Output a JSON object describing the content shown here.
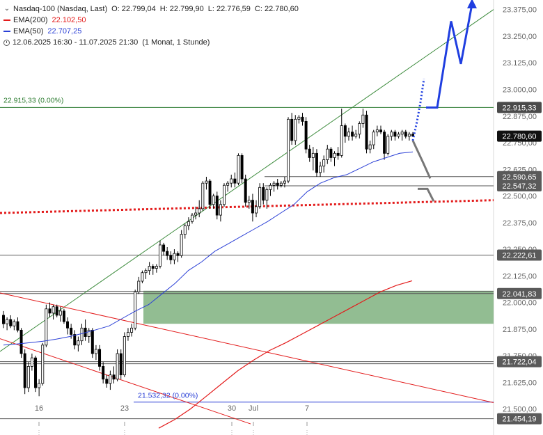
{
  "header": {
    "instrument": "Nasdaq-100 (Nasdaq, Last)",
    "ohlc": {
      "o": "O: 22.799,04",
      "h": "H: 22.799,90",
      "l": "L: 22.776,59",
      "c": "C: 22.780,60"
    },
    "ema200": {
      "label": "EMA(200)",
      "value": "22.102,50",
      "color": "#e31b1b"
    },
    "ema50": {
      "label": "EMA(50)",
      "value": "22.707,25",
      "color": "#2a3fd6"
    },
    "range": "12.06.2025 16:30 - 11.07.2025 21:30",
    "interval": "(1 Monat, 1 Stunde)"
  },
  "chart_data": {
    "type": "candlestick",
    "ylim": [
      21440,
      23410
    ],
    "y_ticks": [
      "23.375,00",
      "23.250,00",
      "23.125,00",
      "23.000,00",
      "22.875,00",
      "22.750,00",
      "22.625,00",
      "22.500,00",
      "22.375,00",
      "22.250,00",
      "22.125,00",
      "22.000,00",
      "21.875,00",
      "21.750,00",
      "21.625,00",
      "21.500,00"
    ],
    "y_tick_values": [
      23375,
      23250,
      23125,
      23000,
      22875,
      22750,
      22625,
      22500,
      22375,
      22250,
      22125,
      22000,
      21875,
      21750,
      21625,
      21500
    ],
    "x_ticks": [
      "16",
      "23",
      "30",
      "Jul",
      "7"
    ],
    "candles": [
      [
        21940,
        21960,
        21880,
        21900
      ],
      [
        21900,
        21930,
        21870,
        21920
      ],
      [
        21920,
        21940,
        21880,
        21890
      ],
      [
        21890,
        21920,
        21870,
        21910
      ],
      [
        21910,
        21930,
        21860,
        21870
      ],
      [
        21870,
        21880,
        21740,
        21760
      ],
      [
        21760,
        21780,
        21570,
        21600
      ],
      [
        21600,
        21720,
        21580,
        21700
      ],
      [
        21700,
        21760,
        21680,
        21740
      ],
      [
        21740,
        21750,
        21580,
        21600
      ],
      [
        21600,
        21640,
        21560,
        21620
      ],
      [
        21620,
        21810,
        21610,
        21800
      ],
      [
        21800,
        21990,
        21790,
        21970
      ],
      [
        21970,
        22000,
        21930,
        21950
      ],
      [
        21950,
        21990,
        21920,
        21980
      ],
      [
        21980,
        21990,
        21930,
        21940
      ],
      [
        21940,
        21980,
        21910,
        21960
      ],
      [
        21960,
        21970,
        21900,
        21910
      ],
      [
        21910,
        21930,
        21850,
        21880
      ],
      [
        21880,
        21900,
        21830,
        21850
      ],
      [
        21850,
        21870,
        21780,
        21800
      ],
      [
        21800,
        21840,
        21770,
        21820
      ],
      [
        21820,
        21900,
        21800,
        21880
      ],
      [
        21880,
        21920,
        21820,
        21840
      ],
      [
        21840,
        21880,
        21810,
        21870
      ],
      [
        21870,
        21880,
        21740,
        21760
      ],
      [
        21760,
        21800,
        21730,
        21780
      ],
      [
        21780,
        21800,
        21680,
        21700
      ],
      [
        21700,
        21720,
        21620,
        21640
      ],
      [
        21640,
        21660,
        21600,
        21620
      ],
      [
        21620,
        21680,
        21590,
        21660
      ],
      [
        21660,
        21700,
        21620,
        21640
      ],
      [
        21640,
        21780,
        21630,
        21760
      ],
      [
        21760,
        21780,
        21640,
        21660
      ],
      [
        21660,
        21860,
        21650,
        21840
      ],
      [
        21840,
        21880,
        21820,
        21860
      ],
      [
        21860,
        21900,
        21840,
        21880
      ],
      [
        21880,
        22060,
        21870,
        22050
      ],
      [
        22050,
        22120,
        22040,
        22100
      ],
      [
        22100,
        22150,
        22090,
        22140
      ],
      [
        22140,
        22160,
        22110,
        22150
      ],
      [
        22150,
        22190,
        22130,
        22170
      ],
      [
        22170,
        22180,
        22130,
        22160
      ],
      [
        22160,
        22180,
        22140,
        22170
      ],
      [
        22170,
        22290,
        22160,
        22270
      ],
      [
        22270,
        22280,
        22220,
        22240
      ],
      [
        22240,
        22260,
        22200,
        22220
      ],
      [
        22220,
        22240,
        22180,
        22200
      ],
      [
        22200,
        22250,
        22180,
        22230
      ],
      [
        22230,
        22240,
        22190,
        22220
      ],
      [
        22220,
        22340,
        22210,
        22320
      ],
      [
        22320,
        22370,
        22300,
        22360
      ],
      [
        22360,
        22400,
        22340,
        22380
      ],
      [
        22380,
        22420,
        22370,
        22410
      ],
      [
        22410,
        22450,
        22390,
        22420
      ],
      [
        22420,
        22480,
        22400,
        22440
      ],
      [
        22440,
        22570,
        22430,
        22560
      ],
      [
        22560,
        22590,
        22530,
        22570
      ],
      [
        22570,
        22580,
        22440,
        22460
      ],
      [
        22460,
        22510,
        22440,
        22500
      ],
      [
        22500,
        22520,
        22390,
        22410
      ],
      [
        22410,
        22480,
        22380,
        22460
      ],
      [
        22460,
        22560,
        22450,
        22550
      ],
      [
        22550,
        22570,
        22520,
        22560
      ],
      [
        22560,
        22600,
        22540,
        22580
      ],
      [
        22580,
        22610,
        22540,
        22560
      ],
      [
        22560,
        22700,
        22550,
        22690
      ],
      [
        22690,
        22700,
        22560,
        22580
      ],
      [
        22580,
        22600,
        22450,
        22470
      ],
      [
        22470,
        22500,
        22440,
        22480
      ],
      [
        22480,
        22510,
        22380,
        22420
      ],
      [
        22420,
        22480,
        22400,
        22450
      ],
      [
        22450,
        22560,
        22440,
        22540
      ],
      [
        22540,
        22560,
        22460,
        22480
      ],
      [
        22480,
        22540,
        22440,
        22530
      ],
      [
        22530,
        22560,
        22500,
        22550
      ],
      [
        22550,
        22570,
        22520,
        22560
      ],
      [
        22560,
        22580,
        22530,
        22550
      ],
      [
        22550,
        22570,
        22540,
        22560
      ],
      [
        22560,
        22590,
        22540,
        22570
      ],
      [
        22570,
        22870,
        22560,
        22860
      ],
      [
        22860,
        22890,
        22740,
        22760
      ],
      [
        22760,
        22880,
        22740,
        22860
      ],
      [
        22860,
        22880,
        22840,
        22870
      ],
      [
        22870,
        22890,
        22830,
        22850
      ],
      [
        22850,
        22870,
        22700,
        22720
      ],
      [
        22720,
        22740,
        22660,
        22680
      ],
      [
        22680,
        22730,
        22620,
        22700
      ],
      [
        22700,
        22720,
        22590,
        22610
      ],
      [
        22610,
        22660,
        22590,
        22640
      ],
      [
        22640,
        22690,
        22610,
        22670
      ],
      [
        22670,
        22740,
        22650,
        22720
      ],
      [
        22720,
        22730,
        22660,
        22680
      ],
      [
        22680,
        22710,
        22640,
        22700
      ],
      [
        22700,
        22730,
        22670,
        22690
      ],
      [
        22690,
        22910,
        22680,
        22830
      ],
      [
        22830,
        22840,
        22750,
        22780
      ],
      [
        22780,
        22820,
        22760,
        22800
      ],
      [
        22800,
        22830,
        22760,
        22780
      ],
      [
        22780,
        22810,
        22770,
        22790
      ],
      [
        22790,
        22850,
        22770,
        22840
      ],
      [
        22840,
        22910,
        22820,
        22880
      ],
      [
        22880,
        22900,
        22700,
        22720
      ],
      [
        22720,
        22760,
        22700,
        22740
      ],
      [
        22740,
        22810,
        22720,
        22800
      ],
      [
        22800,
        22830,
        22780,
        22810
      ],
      [
        22810,
        22830,
        22790,
        22800
      ],
      [
        22800,
        22810,
        22670,
        22700
      ],
      [
        22700,
        22790,
        22690,
        22780
      ],
      [
        22780,
        22810,
        22760,
        22800
      ],
      [
        22800,
        22810,
        22760,
        22780
      ],
      [
        22780,
        22800,
        22770,
        22790
      ],
      [
        22790,
        22810,
        22760,
        22800
      ],
      [
        22800,
        22810,
        22770,
        22780
      ],
      [
        22780,
        22800,
        22760,
        22790
      ],
      [
        22790,
        22800,
        22776,
        22781
      ]
    ],
    "ema50_values": [
      21800,
      21805,
      21811,
      21818,
      21828,
      21840,
      21855,
      21872,
      21890,
      21925,
      21960,
      21990,
      22040,
      22090,
      22150,
      22190,
      22240,
      22275,
      22310,
      22345,
      22380,
      22420,
      22460,
      22520,
      22560,
      22585,
      22600,
      22630,
      22660,
      22680,
      22700,
      22707
    ],
    "ema200_values": [
      21410,
      21450,
      21500,
      21560,
      21620,
      21680,
      21730,
      21775,
      21810,
      21850,
      21890,
      21930,
      21970,
      22010,
      22050,
      22080,
      22102
    ],
    "upper_trendline": [
      21770,
      23375
    ],
    "channel_upper": [
      22045,
      21530
    ],
    "channel_lower": [
      21830,
      21430
    ],
    "support_dotted": [
      22420,
      22480
    ],
    "scenario_bull": [
      22760,
      22850,
      22940,
      23050,
      22915,
      22915,
      23320,
      23120,
      23400
    ],
    "scenario_bear": [
      22760,
      22655,
      22582,
      22533,
      22475
    ],
    "zone": {
      "top": 22055,
      "bottom": 21900,
      "color": "#7fb27f"
    },
    "levels": [
      {
        "value": 22915.33,
        "label": "22.915,33",
        "color": "#2e7d32",
        "note": "22.915,33 (0.00%)"
      },
      {
        "value": 22590.65,
        "label": "22.590,65",
        "color": "#555555"
      },
      {
        "value": 22547.32,
        "label": "22.547,32",
        "color": "#555555"
      },
      {
        "value": 22222.61,
        "label": "22.222,61",
        "color": "#555555"
      },
      {
        "value": 22041.83,
        "label": "22.041,83",
        "color": "#555555"
      },
      {
        "value": 21722.04,
        "label": "21.722,04",
        "color": "#555555"
      },
      {
        "value": 21532.32,
        "label": "",
        "color": "#2a3fd6",
        "note": "21.532,32 (0.00%)"
      },
      {
        "value": 21454.19,
        "label": "21.454,19",
        "color": "#555555"
      }
    ],
    "last_price": {
      "value": 22780.6,
      "label": "22.780,60"
    }
  }
}
